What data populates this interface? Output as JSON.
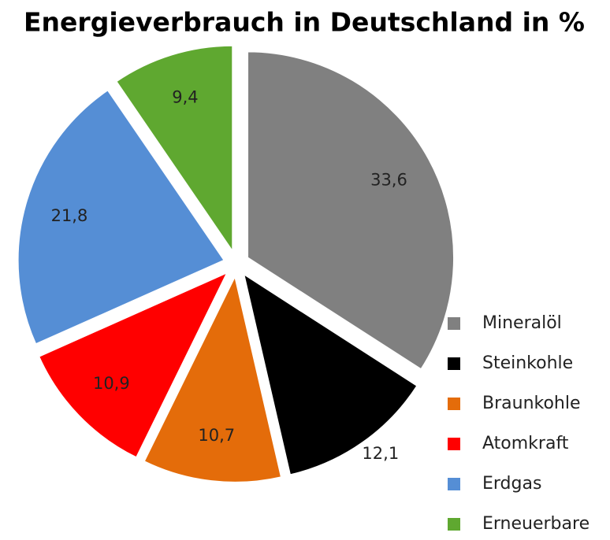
{
  "chart_data": {
    "type": "pie",
    "title": "Energieverbrauch in Deutschland in %",
    "categories": [
      "Mineralöl",
      "Steinkohle",
      "Braunkohle",
      "Atomkraft",
      "Erdgas",
      "Erneuerbare"
    ],
    "values": [
      33.6,
      12.1,
      10.7,
      10.9,
      21.8,
      9.4
    ],
    "value_labels": [
      "33,6",
      "12,1",
      "10,7",
      "10,9",
      "21,8",
      "9,4"
    ],
    "colors": [
      "#808080",
      "#000000",
      "#e46c0a",
      "#ff0000",
      "#558ed5",
      "#5fa830"
    ],
    "legend": "right"
  }
}
